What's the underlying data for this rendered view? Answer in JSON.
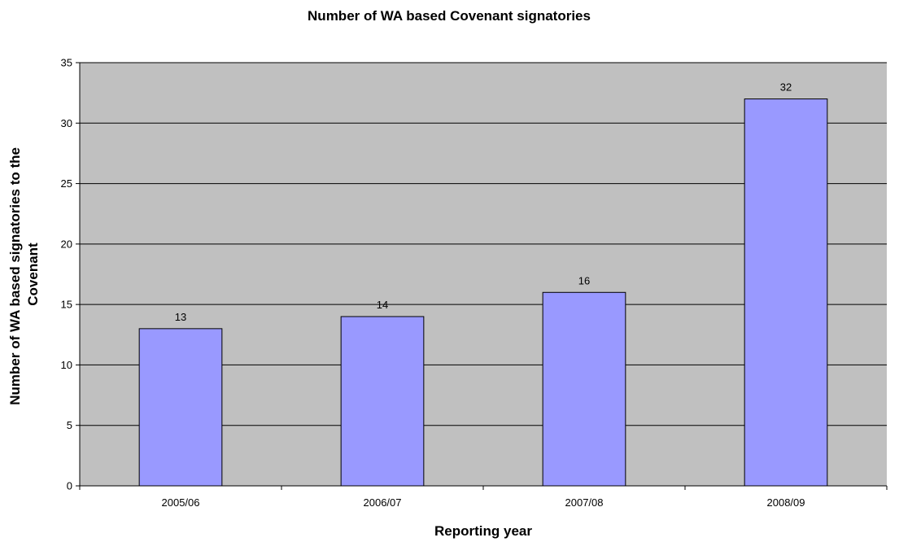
{
  "chart_data": {
    "type": "bar",
    "title": "Number of WA based Covenant signatories",
    "xlabel": "Reporting year",
    "ylabel_lines": [
      "Number of WA based signatories to the",
      "Covenant"
    ],
    "categories": [
      "2005/06",
      "2006/07",
      "2007/08",
      "2008/09"
    ],
    "values": [
      13,
      14,
      16,
      32
    ],
    "data_labels": [
      "13",
      "14",
      "16",
      "32"
    ],
    "ylim": [
      0,
      35
    ],
    "yticks": [
      0,
      5,
      10,
      15,
      20,
      25,
      30,
      35
    ],
    "ytick_labels": [
      "0",
      "5",
      "10",
      "15",
      "20",
      "25",
      "30",
      "35"
    ],
    "grid": true,
    "legend": "none"
  },
  "colors": {
    "plot_background": "#c0c0c0",
    "bar_fill": "#9999ff",
    "bar_stroke": "#000000",
    "gridline": "#000000"
  }
}
